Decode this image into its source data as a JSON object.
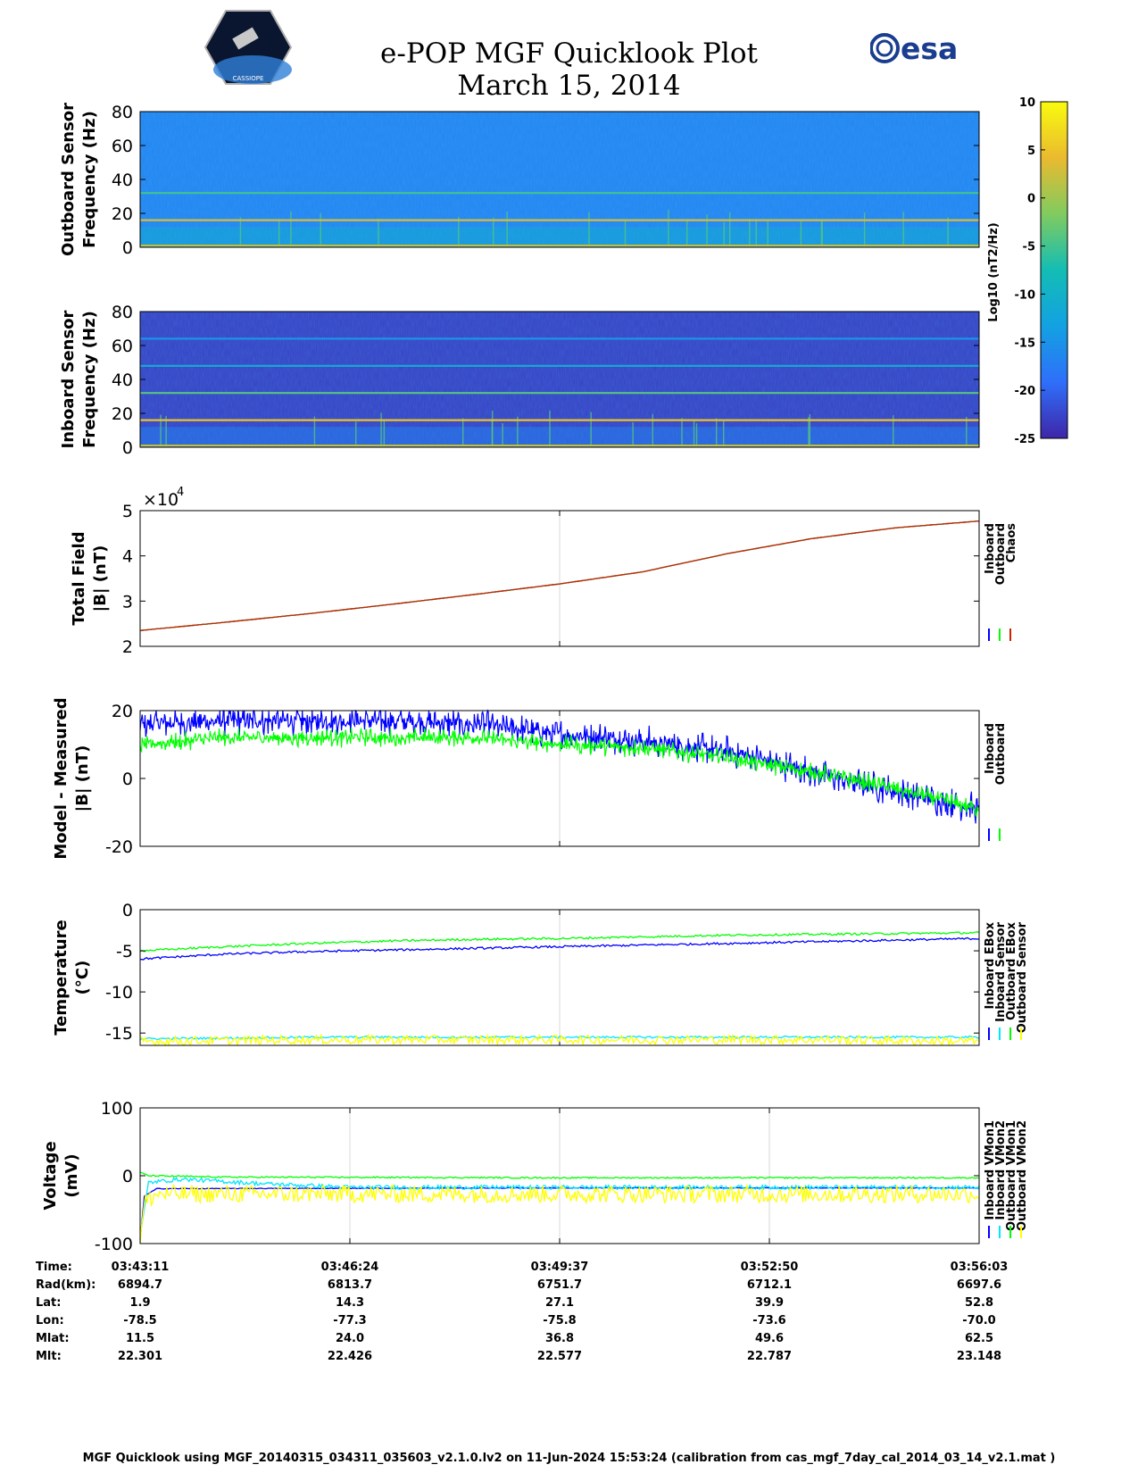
{
  "header": {
    "title": "e-POP MGF Quicklook Plot",
    "date": "March 15, 2014",
    "left_logo_text": "CASSIOPE",
    "right_logo_text": "esa"
  },
  "colorbar": {
    "ticks": [
      10,
      5,
      0,
      -5,
      -10,
      -15,
      -20,
      -25
    ],
    "label": "Log10 (nT2/Hz)",
    "colors": [
      "#3e26a8",
      "#2f6ffa",
      "#13a1e2",
      "#13bdb4",
      "#81cb5f",
      "#eaba2f",
      "#f9fb0e"
    ]
  },
  "chart_data": [
    {
      "type": "heatmap",
      "id": "outboard-spectrogram",
      "ylabel": [
        "Outboard Sensor",
        "Frequency (Hz)"
      ],
      "ylim": [
        0,
        80
      ],
      "yticks": [
        0,
        20,
        40,
        60,
        80
      ],
      "background_level": -17,
      "lines": [
        {
          "freq": 16,
          "level": 3
        },
        {
          "freq": 32,
          "level": -5
        },
        {
          "freq": 1,
          "level": 2
        }
      ]
    },
    {
      "type": "heatmap",
      "id": "inboard-spectrogram",
      "ylabel": [
        "Inboard Sensor",
        "Frequency (Hz)"
      ],
      "ylim": [
        0,
        80
      ],
      "yticks": [
        0,
        20,
        40,
        60,
        80
      ],
      "background_level": -23,
      "lines": [
        {
          "freq": 16,
          "level": 5
        },
        {
          "freq": 32,
          "level": -4
        },
        {
          "freq": 48,
          "level": -11
        },
        {
          "freq": 64,
          "level": -15
        },
        {
          "freq": 1,
          "level": 2
        }
      ]
    },
    {
      "type": "line",
      "id": "total-field",
      "ylabel": [
        "Total Field",
        "|B| (nT)"
      ],
      "ylim": [
        2,
        5
      ],
      "yticks": [
        2,
        3,
        4,
        5
      ],
      "multiplier": "×10",
      "multiplier_exp": "4",
      "legend": [
        "Inboard",
        "Outboard",
        "Chaos"
      ],
      "series": [
        {
          "name": "Inboard",
          "color": "#0000ff",
          "x": [
            0,
            0.1,
            0.2,
            0.3,
            0.4,
            0.5,
            0.6,
            0.7,
            0.8,
            0.9,
            1.0
          ],
          "values": [
            2.35,
            2.53,
            2.72,
            2.93,
            3.15,
            3.38,
            3.65,
            4.05,
            4.38,
            4.62,
            4.77
          ]
        },
        {
          "name": "Outboard",
          "color": "#00ff00",
          "x": [
            0,
            0.1,
            0.2,
            0.3,
            0.4,
            0.5,
            0.6,
            0.7,
            0.8,
            0.9,
            1.0
          ],
          "values": [
            2.35,
            2.53,
            2.72,
            2.93,
            3.15,
            3.38,
            3.65,
            4.05,
            4.38,
            4.62,
            4.77
          ]
        },
        {
          "name": "Chaos",
          "color": "#cc2200",
          "x": [
            0,
            0.1,
            0.2,
            0.3,
            0.4,
            0.5,
            0.6,
            0.7,
            0.8,
            0.9,
            1.0
          ],
          "values": [
            2.35,
            2.53,
            2.72,
            2.93,
            3.15,
            3.38,
            3.65,
            4.05,
            4.38,
            4.62,
            4.77
          ]
        }
      ]
    },
    {
      "type": "line",
      "id": "model-minus-measured",
      "ylabel": [
        "Model - Measured",
        "|B| (nT)"
      ],
      "ylim": [
        -20,
        20
      ],
      "yticks": [
        -20,
        0,
        20
      ],
      "legend": [
        "Inboard",
        "Outboard"
      ],
      "series": [
        {
          "name": "Inboard",
          "color": "#0000ff",
          "x": [
            0,
            0.1,
            0.2,
            0.3,
            0.4,
            0.5,
            0.6,
            0.7,
            0.8,
            0.9,
            1.0
          ],
          "values": [
            16,
            17,
            17,
            17,
            16,
            13,
            11,
            8,
            2,
            -4,
            -9
          ],
          "spread": 5
        },
        {
          "name": "Outboard",
          "color": "#00ff00",
          "x": [
            0,
            0.1,
            0.2,
            0.3,
            0.4,
            0.5,
            0.6,
            0.7,
            0.8,
            0.9,
            1.0
          ],
          "values": [
            10,
            12,
            12,
            12,
            12,
            10,
            9,
            6,
            2,
            -3,
            -9
          ],
          "spread": 3
        }
      ]
    },
    {
      "type": "line",
      "id": "temperature",
      "ylabel": [
        "Temperature",
        "(°C)"
      ],
      "ylim": [
        -16.5,
        0
      ],
      "yticks": [
        -15,
        -10,
        -5,
        0
      ],
      "legend": [
        "Inboard EBox",
        "Inboard Sensor",
        "Outboard EBox",
        "Outboard Sensor"
      ],
      "series": [
        {
          "name": "Inboard EBox",
          "color": "#0000ff",
          "x": [
            0,
            0.1,
            0.2,
            0.3,
            0.4,
            0.5,
            0.6,
            0.7,
            0.8,
            0.9,
            1.0
          ],
          "values": [
            -6.0,
            -5.4,
            -5.1,
            -4.9,
            -4.7,
            -4.5,
            -4.3,
            -4.1,
            -3.9,
            -3.7,
            -3.5
          ]
        },
        {
          "name": "Inboard Sensor",
          "color": "#00e5ff",
          "x": [
            0,
            0.1,
            0.2,
            0.3,
            0.4,
            0.5,
            0.6,
            0.7,
            0.8,
            0.9,
            1.0
          ],
          "values": [
            -15.7,
            -15.6,
            -15.5,
            -15.5,
            -15.5,
            -15.5,
            -15.5,
            -15.5,
            -15.5,
            -15.5,
            -15.5
          ]
        },
        {
          "name": "Outboard EBox",
          "color": "#00ff00",
          "x": [
            0,
            0.1,
            0.2,
            0.3,
            0.4,
            0.5,
            0.6,
            0.7,
            0.8,
            0.9,
            1.0
          ],
          "values": [
            -5.0,
            -4.5,
            -4.1,
            -3.8,
            -3.6,
            -3.5,
            -3.3,
            -3.1,
            -3.0,
            -2.9,
            -2.8
          ]
        },
        {
          "name": "Outboard Sensor",
          "color": "#ffff00",
          "x": [
            0,
            0.1,
            0.2,
            0.3,
            0.4,
            0.5,
            0.6,
            0.7,
            0.8,
            0.9,
            1.0
          ],
          "values": [
            -16.0,
            -15.9,
            -15.8,
            -15.8,
            -15.8,
            -15.8,
            -15.8,
            -15.8,
            -15.8,
            -15.9,
            -16.0
          ]
        }
      ]
    },
    {
      "type": "line",
      "id": "voltage",
      "ylabel": [
        "Voltage",
        "(mV)"
      ],
      "ylim": [
        -100,
        100
      ],
      "yticks": [
        -100,
        0,
        100
      ],
      "legend": [
        "Inboard VMon1",
        "Inboard VMon2",
        "Outboard VMon1",
        "Outboard VMon2"
      ],
      "series": [
        {
          "name": "Inboard VMon1",
          "color": "#0000ff",
          "x": [
            0,
            0.005,
            0.02,
            0.5,
            1.0
          ],
          "values": [
            -95,
            -30,
            -19,
            -18,
            -18
          ]
        },
        {
          "name": "Inboard VMon2",
          "color": "#00e5ff",
          "x": [
            0,
            0.01,
            0.05,
            0.15,
            0.25,
            0.5,
            1.0
          ],
          "values": [
            -90,
            -10,
            -5,
            -12,
            -17,
            -17,
            -17
          ]
        },
        {
          "name": "Outboard VMon1",
          "color": "#00ff00",
          "x": [
            0,
            0.01,
            0.1,
            0.5,
            1.0
          ],
          "values": [
            5,
            0,
            -2,
            -3,
            -3
          ]
        },
        {
          "name": "Outboard VMon2",
          "color": "#ffff00",
          "x": [
            0,
            0.005,
            0.02,
            0.5,
            1.0
          ],
          "values": [
            -100,
            -40,
            -27,
            -27,
            -27
          ]
        }
      ]
    }
  ],
  "time_axis": {
    "rows": [
      {
        "label": "Time:",
        "values": [
          "03:43:11",
          "03:46:24",
          "03:49:37",
          "03:52:50",
          "03:56:03"
        ]
      },
      {
        "label": "Rad(km):",
        "values": [
          "6894.7",
          "6813.7",
          "6751.7",
          "6712.1",
          "6697.6"
        ]
      },
      {
        "label": "Lat:",
        "values": [
          "1.9",
          "14.3",
          "27.1",
          "39.9",
          "52.8"
        ]
      },
      {
        "label": "Lon:",
        "values": [
          "-78.5",
          "-77.3",
          "-75.8",
          "-73.6",
          "-70.0"
        ]
      },
      {
        "label": "Mlat:",
        "values": [
          "11.5",
          "24.0",
          "36.8",
          "49.6",
          "62.5"
        ]
      },
      {
        "label": "Mlt:",
        "values": [
          "22.301",
          "22.426",
          "22.577",
          "22.787",
          "23.148"
        ]
      }
    ]
  },
  "footer": "MGF Quicklook using MGF_20140315_034311_035603_v2.1.0.lv2 on 11-Jun-2024 15:53:24 (calibration from cas_mgf_7day_cal_2014_03_14_v2.1.mat )"
}
